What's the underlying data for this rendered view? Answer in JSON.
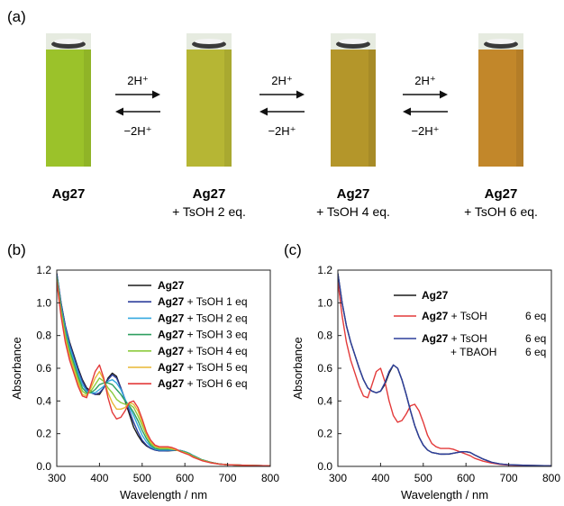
{
  "panel_labels": {
    "a": "(a)",
    "b": "(b)",
    "c": "(c)"
  },
  "panel_a": {
    "samples": [
      {
        "name": "Ag27",
        "suffix": "",
        "color": "#9bc22a"
      },
      {
        "name": "Ag27",
        "suffix": "+ TsOH 2 eq.",
        "color": "#b6b634"
      },
      {
        "name": "Ag27",
        "suffix": "+ TsOH 4 eq.",
        "color": "#b4962a"
      },
      {
        "name": "Ag27",
        "suffix": "+ TsOH 6 eq.",
        "color": "#c2872a"
      }
    ],
    "arrows": [
      {
        "forward": "2H⁺",
        "backward": "−2H⁺"
      },
      {
        "forward": "2H⁺",
        "backward": "−2H⁺"
      },
      {
        "forward": "2H⁺",
        "backward": "−2H⁺"
      }
    ]
  },
  "chart_data": [
    {
      "type": "line",
      "panel": "(b)",
      "xlabel": "Wavelength / nm",
      "ylabel": "Absorbance",
      "xlim": [
        300,
        800
      ],
      "ylim": [
        0,
        1.2
      ],
      "xticks": [
        300,
        400,
        500,
        600,
        700,
        800
      ],
      "yticks": [
        0,
        0.2,
        0.4,
        0.6,
        0.8,
        1.0,
        1.2
      ],
      "grid": false,
      "legend": "top-right",
      "x": [
        300,
        310,
        320,
        330,
        340,
        350,
        360,
        370,
        380,
        390,
        400,
        410,
        420,
        430,
        440,
        450,
        460,
        470,
        480,
        490,
        500,
        510,
        520,
        530,
        540,
        550,
        560,
        570,
        580,
        590,
        600,
        610,
        620,
        640,
        660,
        680,
        700,
        750,
        800
      ],
      "series": [
        {
          "name": "Ag27",
          "name_bold": "Ag27",
          "name_rest": "",
          "color": "#1a1a1a",
          "values": [
            1.18,
            1.0,
            0.86,
            0.76,
            0.68,
            0.6,
            0.53,
            0.48,
            0.46,
            0.44,
            0.44,
            0.48,
            0.54,
            0.57,
            0.55,
            0.48,
            0.4,
            0.32,
            0.24,
            0.19,
            0.15,
            0.125,
            0.11,
            0.1,
            0.095,
            0.095,
            0.095,
            0.097,
            0.098,
            0.097,
            0.09,
            0.08,
            0.065,
            0.04,
            0.025,
            0.015,
            0.01,
            0.006,
            0.004
          ]
        },
        {
          "name": "Ag27 + TsOH 1 eq",
          "name_bold": "Ag27",
          "name_rest": " + TsOH 1 eq",
          "color": "#2d3f9c",
          "values": [
            1.18,
            1.0,
            0.86,
            0.75,
            0.67,
            0.59,
            0.52,
            0.47,
            0.45,
            0.44,
            0.45,
            0.48,
            0.53,
            0.56,
            0.54,
            0.48,
            0.41,
            0.34,
            0.27,
            0.21,
            0.16,
            0.13,
            0.11,
            0.1,
            0.095,
            0.095,
            0.096,
            0.098,
            0.099,
            0.097,
            0.09,
            0.08,
            0.065,
            0.04,
            0.025,
            0.015,
            0.01,
            0.006,
            0.004
          ]
        },
        {
          "name": "Ag27 + TsOH 2 eq",
          "name_bold": "Ag27",
          "name_rest": " + TsOH 2 eq",
          "color": "#34a9e0",
          "values": [
            1.17,
            0.98,
            0.84,
            0.73,
            0.65,
            0.57,
            0.5,
            0.46,
            0.45,
            0.45,
            0.47,
            0.49,
            0.52,
            0.53,
            0.51,
            0.47,
            0.41,
            0.36,
            0.31,
            0.25,
            0.19,
            0.15,
            0.12,
            0.105,
            0.1,
            0.1,
            0.1,
            0.1,
            0.1,
            0.097,
            0.09,
            0.08,
            0.065,
            0.04,
            0.025,
            0.015,
            0.01,
            0.006,
            0.004
          ]
        },
        {
          "name": "Ag27 + TsOH 3 eq",
          "name_bold": "Ag27",
          "name_rest": " + TsOH 3 eq",
          "color": "#2e9f5f",
          "values": [
            1.16,
            0.97,
            0.82,
            0.71,
            0.63,
            0.55,
            0.48,
            0.45,
            0.45,
            0.47,
            0.5,
            0.51,
            0.51,
            0.5,
            0.47,
            0.44,
            0.4,
            0.37,
            0.33,
            0.28,
            0.22,
            0.17,
            0.13,
            0.11,
            0.105,
            0.105,
            0.105,
            0.105,
            0.1,
            0.095,
            0.088,
            0.078,
            0.063,
            0.04,
            0.025,
            0.015,
            0.01,
            0.006,
            0.004
          ]
        },
        {
          "name": "Ag27 + TsOH 4 eq",
          "name_bold": "Ag27",
          "name_rest": " + TsOH 4 eq",
          "color": "#8ccb3c",
          "values": [
            1.15,
            0.95,
            0.8,
            0.69,
            0.61,
            0.53,
            0.46,
            0.44,
            0.46,
            0.5,
            0.54,
            0.52,
            0.48,
            0.45,
            0.41,
            0.39,
            0.38,
            0.38,
            0.36,
            0.31,
            0.25,
            0.19,
            0.14,
            0.12,
            0.11,
            0.11,
            0.11,
            0.105,
            0.1,
            0.093,
            0.085,
            0.075,
            0.06,
            0.038,
            0.024,
            0.015,
            0.01,
            0.006,
            0.004
          ]
        },
        {
          "name": "Ag27 + TsOH 5 eq",
          "name_bold": "Ag27",
          "name_rest": " + TsOH 5 eq",
          "color": "#e9b733",
          "values": [
            1.14,
            0.93,
            0.78,
            0.67,
            0.59,
            0.51,
            0.44,
            0.43,
            0.48,
            0.54,
            0.58,
            0.53,
            0.45,
            0.39,
            0.35,
            0.35,
            0.36,
            0.39,
            0.38,
            0.34,
            0.27,
            0.2,
            0.15,
            0.125,
            0.115,
            0.115,
            0.115,
            0.11,
            0.1,
            0.09,
            0.082,
            0.072,
            0.058,
            0.036,
            0.023,
            0.014,
            0.01,
            0.006,
            0.004
          ]
        },
        {
          "name": "Ag27 + TsOH 6 eq",
          "name_bold": "Ag27",
          "name_rest": " + TsOH 6 eq",
          "color": "#e33a3a",
          "values": [
            1.13,
            0.92,
            0.76,
            0.65,
            0.57,
            0.49,
            0.43,
            0.42,
            0.5,
            0.58,
            0.62,
            0.54,
            0.42,
            0.33,
            0.29,
            0.3,
            0.34,
            0.39,
            0.4,
            0.36,
            0.29,
            0.21,
            0.16,
            0.13,
            0.12,
            0.12,
            0.12,
            0.115,
            0.105,
            0.09,
            0.08,
            0.07,
            0.055,
            0.035,
            0.022,
            0.014,
            0.01,
            0.006,
            0.004
          ]
        }
      ]
    },
    {
      "type": "line",
      "panel": "(c)",
      "xlabel": "Wavelength / nm",
      "ylabel": "Absorbance",
      "xlim": [
        300,
        800
      ],
      "ylim": [
        0,
        1.2
      ],
      "xticks": [
        300,
        400,
        500,
        600,
        700,
        800
      ],
      "yticks": [
        0,
        0.2,
        0.4,
        0.6,
        0.8,
        1.0,
        1.2
      ],
      "grid": false,
      "legend": "top-right",
      "x": [
        300,
        310,
        320,
        330,
        340,
        350,
        360,
        370,
        380,
        390,
        400,
        410,
        420,
        430,
        440,
        450,
        460,
        470,
        480,
        490,
        500,
        510,
        520,
        530,
        540,
        550,
        560,
        570,
        580,
        590,
        600,
        610,
        620,
        640,
        660,
        680,
        700,
        750,
        800
      ],
      "series": [
        {
          "name": "Ag27",
          "label_lines": [
            {
              "bold": "Ag27",
              "rest": "",
              "qty": ""
            }
          ],
          "color": "#1a1a1a",
          "values": [
            1.18,
            1.0,
            0.86,
            0.76,
            0.68,
            0.6,
            0.53,
            0.48,
            0.46,
            0.45,
            0.46,
            0.5,
            0.57,
            0.62,
            0.6,
            0.53,
            0.44,
            0.34,
            0.25,
            0.18,
            0.13,
            0.1,
            0.085,
            0.08,
            0.075,
            0.075,
            0.075,
            0.08,
            0.085,
            0.09,
            0.09,
            0.085,
            0.07,
            0.045,
            0.025,
            0.015,
            0.01,
            0.006,
            0.004
          ]
        },
        {
          "name": "Ag27 + TsOH 6 eq",
          "label_lines": [
            {
              "bold": "Ag27",
              "rest": " + TsOH",
              "qty": "6 eq"
            }
          ],
          "color": "#e33a3a",
          "values": [
            1.13,
            0.92,
            0.76,
            0.65,
            0.57,
            0.49,
            0.43,
            0.42,
            0.5,
            0.58,
            0.6,
            0.52,
            0.4,
            0.31,
            0.27,
            0.28,
            0.32,
            0.37,
            0.38,
            0.34,
            0.27,
            0.19,
            0.14,
            0.12,
            0.11,
            0.11,
            0.11,
            0.105,
            0.095,
            0.085,
            0.075,
            0.065,
            0.05,
            0.032,
            0.02,
            0.012,
            0.008,
            0.005,
            0.003
          ]
        },
        {
          "name": "Ag27 + TsOH 6 eq + TBAOH 6 eq",
          "label_lines": [
            {
              "bold": "Ag27",
              "rest": " + TsOH",
              "qty": "6 eq"
            },
            {
              "bold": "",
              "rest": "+ TBAOH",
              "qty": "6 eq"
            }
          ],
          "color": "#2d3f9c",
          "values": [
            1.18,
            1.0,
            0.86,
            0.76,
            0.68,
            0.6,
            0.53,
            0.48,
            0.46,
            0.45,
            0.46,
            0.51,
            0.58,
            0.62,
            0.6,
            0.53,
            0.44,
            0.34,
            0.25,
            0.18,
            0.13,
            0.1,
            0.085,
            0.08,
            0.075,
            0.075,
            0.076,
            0.08,
            0.085,
            0.09,
            0.09,
            0.085,
            0.07,
            0.045,
            0.025,
            0.015,
            0.01,
            0.006,
            0.004
          ]
        }
      ]
    }
  ]
}
